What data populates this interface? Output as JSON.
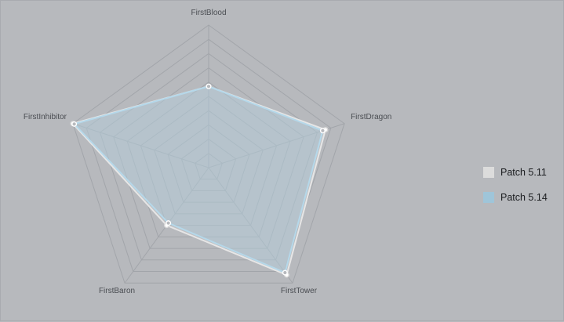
{
  "chart_data": {
    "type": "radar",
    "title": "",
    "axes": [
      "FirstBlood",
      "FirstDragon",
      "FirstTower",
      "FirstBaron",
      "FirstInhibitor"
    ],
    "levels": 10,
    "max": 1.0,
    "series": [
      {
        "name": "Patch 5.11",
        "values": [
          0.57,
          0.86,
          0.93,
          0.5,
          1.0
        ],
        "color": "#dcdcdc"
      },
      {
        "name": "Patch 5.14",
        "values": [
          0.57,
          0.84,
          0.91,
          0.48,
          0.99
        ],
        "color": "#a3c9dc"
      }
    ],
    "legend_position": "right"
  }
}
